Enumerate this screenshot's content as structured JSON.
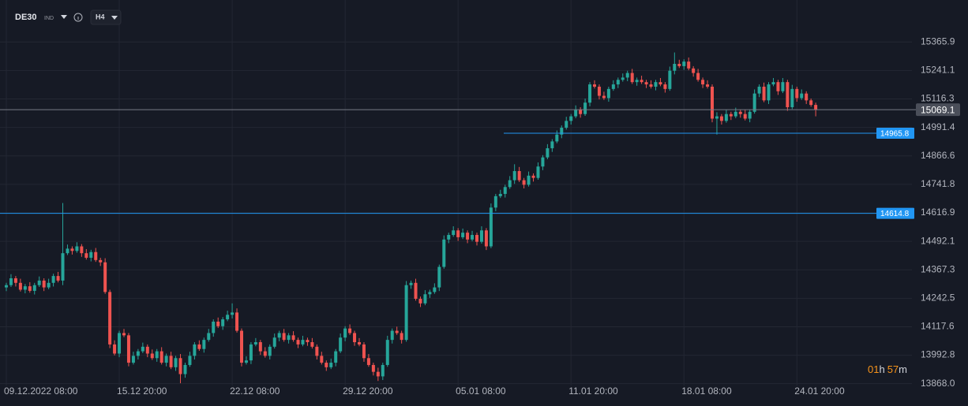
{
  "chart_data": {
    "type": "candlestick",
    "symbol": "DE30",
    "symbol_type": "IND",
    "timeframe": "H4",
    "categories": [
      "09.12.2022 08:00",
      null,
      null,
      null,
      null,
      null,
      null,
      null,
      null,
      null,
      null,
      null,
      null,
      null,
      null,
      null,
      null,
      null,
      null,
      null,
      null,
      null,
      null,
      null,
      "15.12 20:00",
      null,
      null,
      null,
      null,
      null,
      null,
      null,
      null,
      null,
      null,
      null,
      null,
      null,
      null,
      null,
      null,
      null,
      null,
      null,
      null,
      null,
      null,
      null,
      "22.12 08:00",
      null,
      null,
      null,
      null,
      null,
      null,
      null,
      null,
      null,
      null,
      null,
      null,
      null,
      null,
      null,
      null,
      null,
      null,
      null,
      null,
      null,
      null,
      null,
      "29.12 20:00",
      null,
      null,
      null,
      null,
      null,
      null,
      null,
      null,
      null,
      null,
      null,
      null,
      null,
      null,
      null,
      null,
      null,
      null,
      null,
      null,
      null,
      null,
      null,
      "05.01 08:00",
      null,
      null,
      null,
      null,
      null,
      null,
      null,
      null,
      null,
      null,
      null,
      null,
      null,
      null,
      null,
      null,
      null,
      null,
      null,
      null,
      null,
      null,
      null,
      "11.01 20:00",
      null,
      null,
      null,
      null,
      null,
      null,
      null,
      null,
      null,
      null,
      null,
      null,
      null,
      null,
      null,
      null,
      null,
      null,
      null,
      null,
      null,
      null,
      null,
      "18.01 08:00",
      null,
      null,
      null,
      null,
      null,
      null,
      null,
      null,
      null,
      null,
      null,
      null,
      null,
      null,
      null,
      null,
      null,
      null,
      null,
      null,
      null,
      null,
      null,
      "24.01 20:00",
      null,
      null,
      null,
      null
    ],
    "open": [
      14290,
      14300,
      14330,
      14310,
      14280,
      14295,
      14275,
      14300,
      14320,
      14290,
      14310,
      14340,
      14320,
      14440,
      14460,
      14450,
      14470,
      14440,
      14420,
      14445,
      14410,
      14400,
      14270,
      14040,
      14000,
      14090,
      14080,
      13960,
      13990,
      14010,
      14030,
      14000,
      13980,
      14010,
      13960,
      13990,
      13940,
      13980,
      13910,
      13950,
      13990,
      14040,
      14020,
      14060,
      14090,
      14140,
      14120,
      14150,
      14170,
      14180,
      14100,
      13960,
      13970,
      14040,
      14050,
      14010,
      13990,
      14030,
      14070,
      14090,
      14060,
      14080,
      14060,
      14040,
      14060,
      14050,
      14030,
      13990,
      13960,
      13940,
      13960,
      14010,
      14070,
      14110,
      14090,
      14050,
      14040,
      13980,
      13950,
      13920,
      13900,
      13950,
      14060,
      14100,
      14090,
      14060,
      14300,
      14310,
      14240,
      14220,
      14260,
      14270,
      14290,
      14380,
      14500,
      14520,
      14540,
      14510,
      14530,
      14500,
      14520,
      14490,
      14540,
      14470,
      14640,
      14690,
      14700,
      14730,
      14760,
      14800,
      14760,
      14740,
      14780,
      14770,
      14820,
      14860,
      14900,
      14930,
      14960,
      14990,
      15020,
      15040,
      15070,
      15050,
      15100,
      15180,
      15170,
      15130,
      15120,
      15160,
      15180,
      15200,
      15210,
      15230,
      15190,
      15200,
      15190,
      15180,
      15170,
      15190,
      15180,
      15160,
      15240,
      15270,
      15260,
      15280,
      15250,
      15230,
      15200,
      15180,
      15170,
      15030,
      15040,
      15020,
      15050,
      15040,
      15060,
      15050,
      15030,
      15060,
      15140,
      15170,
      15110,
      15180,
      15190,
      15150,
      15190,
      15080,
      15160,
      15120,
      15140,
      15110,
      15090
    ],
    "high": [
      14310,
      14348,
      14340,
      14328,
      14305,
      14313,
      14310,
      14338,
      14330,
      14328,
      14350,
      14358,
      14660,
      14478,
      14470,
      14488,
      14480,
      14458,
      14455,
      14463,
      14420,
      14418,
      14280,
      14058,
      14100,
      14108,
      14090,
      14008,
      14020,
      14048,
      14040,
      14018,
      14020,
      14028,
      14000,
      14008,
      13990,
      13998,
      13960,
      14008,
      14050,
      14058,
      14070,
      14108,
      14150,
      14158,
      14160,
      14188,
      14220,
      14198,
      14110,
      13988,
      14050,
      14068,
      14060,
      14028,
      14040,
      14088,
      14100,
      14108,
      14090,
      14098,
      14070,
      14078,
      14070,
      14068,
      14040,
      14008,
      13970,
      13978,
      14020,
      14088,
      14120,
      14128,
      14100,
      14068,
      14050,
      13998,
      13960,
      13938,
      13960,
      14078,
      14110,
      14118,
      14100,
      14318,
      14320,
      14328,
      14250,
      14278,
      14280,
      14308,
      14390,
      14518,
      14530,
      14558,
      14550,
      14548,
      14540,
      14538,
      14530,
      14558,
      14550,
      14658,
      14700,
      14718,
      14740,
      14778,
      14830,
      14818,
      14770,
      14798,
      14790,
      14838,
      14870,
      14918,
      14940,
      14978,
      15000,
      15038,
      15050,
      15088,
      15080,
      15118,
      15190,
      15198,
      15180,
      15148,
      15170,
      15198,
      15210,
      15228,
      15240,
      15248,
      15210,
      15218,
      15200,
      15198,
      15200,
      15208,
      15190,
      15258,
      15320,
      15288,
      15290,
      15298,
      15260,
      15248,
      15210,
      15198,
      15180,
      15058,
      15050,
      15068,
      15060,
      15078,
      15070,
      15068,
      15070,
      15158,
      15180,
      15188,
      15190,
      15208,
      15200,
      15208,
      15200,
      15178,
      15170,
      15158,
      15150,
      15118,
      15100
    ],
    "low": [
      14274,
      14292,
      14294,
      14272,
      14264,
      14267,
      14259,
      14292,
      14274,
      14282,
      14294,
      14312,
      14300,
      14432,
      14434,
      14442,
      14424,
      14412,
      14404,
      14402,
      14384,
      14262,
      14024,
      13992,
      13984,
      14072,
      13944,
      13952,
      13974,
      14002,
      13984,
      13972,
      13964,
      13952,
      13944,
      13932,
      13924,
      13870,
      13894,
      13942,
      13974,
      14012,
      14004,
      14052,
      14074,
      14112,
      14104,
      14142,
      14154,
      14092,
      13944,
      13952,
      13954,
      14032,
      13994,
      13982,
      13974,
      14022,
      14054,
      14052,
      14044,
      14052,
      14024,
      14032,
      14034,
      14022,
      13974,
      13952,
      13924,
      13932,
      13944,
      14002,
      14054,
      14082,
      14034,
      14032,
      13964,
      13942,
      13904,
      13880,
      13884,
      13942,
      14044,
      14082,
      14044,
      14052,
      14284,
      14232,
      14204,
      14212,
      14244,
      14262,
      14274,
      14372,
      14484,
      14512,
      14494,
      14502,
      14484,
      14492,
      14474,
      14482,
      14454,
      14462,
      14624,
      14682,
      14684,
      14722,
      14744,
      14752,
      14724,
      14732,
      14754,
      14762,
      14804,
      14852,
      14884,
      14922,
      14944,
      14982,
      15004,
      15032,
      15034,
      15042,
      15084,
      15162,
      15114,
      15112,
      15104,
      15152,
      15164,
      15192,
      15194,
      15182,
      15174,
      15182,
      15164,
      15162,
      15154,
      15172,
      15144,
      15152,
      15224,
      15252,
      15244,
      15242,
      15214,
      15192,
      15164,
      15162,
      15014,
      14960,
      15004,
      15012,
      15024,
      15032,
      15034,
      15022,
      15014,
      15052,
      15124,
      15102,
      15094,
      15172,
      15134,
      15142,
      15064,
      15072,
      15104,
      15112,
      15094,
      15082,
      15040
    ],
    "close": [
      14300,
      14330,
      14310,
      14280,
      14295,
      14275,
      14300,
      14320,
      14290,
      14310,
      14340,
      14320,
      14440,
      14460,
      14450,
      14470,
      14440,
      14420,
      14445,
      14410,
      14400,
      14270,
      14040,
      14000,
      14090,
      14080,
      13960,
      13990,
      14010,
      14030,
      14000,
      13980,
      14010,
      13960,
      13990,
      13940,
      13980,
      13910,
      13950,
      13990,
      14040,
      14020,
      14060,
      14090,
      14140,
      14120,
      14150,
      14170,
      14180,
      14100,
      13960,
      13970,
      14040,
      14050,
      14010,
      13990,
      14030,
      14070,
      14090,
      14060,
      14080,
      14060,
      14040,
      14060,
      14050,
      14030,
      13990,
      13960,
      13940,
      13960,
      14010,
      14070,
      14110,
      14090,
      14050,
      14040,
      13980,
      13950,
      13920,
      13900,
      13950,
      14060,
      14100,
      14090,
      14060,
      14300,
      14310,
      14240,
      14220,
      14260,
      14270,
      14290,
      14380,
      14500,
      14520,
      14540,
      14510,
      14530,
      14500,
      14520,
      14490,
      14540,
      14470,
      14640,
      14690,
      14700,
      14730,
      14760,
      14800,
      14760,
      14740,
      14780,
      14770,
      14820,
      14860,
      14900,
      14930,
      14960,
      14990,
      15020,
      15040,
      15070,
      15050,
      15100,
      15180,
      15170,
      15130,
      15120,
      15160,
      15180,
      15200,
      15210,
      15230,
      15190,
      15200,
      15190,
      15180,
      15170,
      15190,
      15180,
      15160,
      15240,
      15270,
      15260,
      15280,
      15250,
      15230,
      15200,
      15180,
      15170,
      15030,
      15040,
      15020,
      15050,
      15040,
      15060,
      15050,
      15030,
      15060,
      15140,
      15170,
      15110,
      15180,
      15190,
      15150,
      15190,
      15080,
      15160,
      15120,
      15140,
      15110,
      15090,
      15069.1
    ],
    "up_color": "#26a69a",
    "down_color": "#ef5350",
    "ylim": [
      13860,
      15550
    ],
    "yticks": [
      15365.9,
      15241.1,
      15116.3,
      14991.4,
      14866.6,
      14741.8,
      14616.9,
      14492.1,
      14367.3,
      14242.5,
      14117.6,
      13992.8,
      {
        "value": 13868,
        "label": "13868.0"
      }
    ],
    "grid": true,
    "price_lines": [
      {
        "value": 15069.1,
        "color": "#787b86",
        "label_bg": "#4a4e59"
      },
      {
        "value": 14965.8,
        "color": "#2196f3",
        "label_bg": "#2196f3"
      },
      {
        "value": 14614.8,
        "color": "#2196f3",
        "label_bg": "#2196f3"
      }
    ],
    "countdown": [
      "01",
      "h",
      "57",
      "m"
    ]
  }
}
